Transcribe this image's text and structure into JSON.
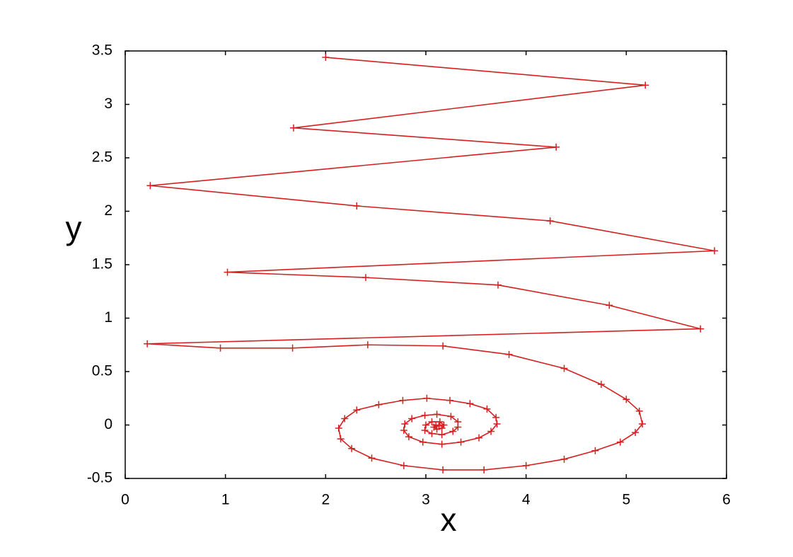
{
  "chart_data": {
    "type": "line",
    "xlabel": "x",
    "ylabel": "y",
    "color": "#d42020",
    "markers": true,
    "xlim": [
      0,
      6
    ],
    "ylim": [
      -0.5,
      3.5
    ],
    "xticks": [
      0,
      1,
      2,
      3,
      4,
      5,
      6
    ],
    "yticks": [
      -0.5,
      0,
      0.5,
      1,
      1.5,
      2,
      2.5,
      3,
      3.5
    ],
    "x": [
      2.0,
      5.19,
      1.68,
      4.3,
      0.25,
      2.31,
      4.24,
      5.88,
      1.02,
      2.4,
      3.72,
      4.83,
      5.74,
      0.22,
      0.95,
      1.67,
      2.42,
      3.17,
      3.83,
      4.38,
      4.75,
      5.0,
      5.13,
      5.16,
      5.09,
      4.94,
      4.69,
      4.38,
      4.0,
      3.58,
      3.17,
      2.78,
      2.46,
      2.26,
      2.15,
      2.13,
      2.19,
      2.31,
      2.53,
      2.77,
      3.01,
      3.24,
      3.44,
      3.61,
      3.7,
      3.71,
      3.65,
      3.53,
      3.35,
      3.16,
      2.97,
      2.83,
      2.78,
      2.79,
      2.86,
      2.99,
      3.11,
      3.25,
      3.32,
      3.32,
      3.27,
      3.16,
      3.06,
      2.99,
      3.0,
      3.06,
      3.14,
      3.18,
      3.16,
      3.11,
      3.08,
      3.1,
      3.13
    ],
    "values": [
      3.44,
      3.18,
      2.78,
      2.6,
      2.24,
      2.05,
      1.91,
      1.63,
      1.43,
      1.38,
      1.31,
      1.12,
      0.9,
      0.76,
      0.72,
      0.72,
      0.75,
      0.74,
      0.66,
      0.53,
      0.38,
      0.24,
      0.13,
      0.01,
      -0.07,
      -0.16,
      -0.24,
      -0.32,
      -0.38,
      -0.42,
      -0.42,
      -0.38,
      -0.31,
      -0.22,
      -0.13,
      -0.03,
      0.06,
      0.14,
      0.19,
      0.23,
      0.25,
      0.23,
      0.2,
      0.15,
      0.07,
      0.01,
      -0.06,
      -0.12,
      -0.16,
      -0.18,
      -0.16,
      -0.11,
      -0.05,
      0.01,
      0.06,
      0.09,
      0.1,
      0.08,
      0.03,
      -0.02,
      -0.06,
      -0.09,
      -0.08,
      -0.05,
      0.0,
      0.03,
      0.03,
      0.0,
      -0.03,
      -0.04,
      -0.02,
      0.0,
      -0.01
    ]
  }
}
